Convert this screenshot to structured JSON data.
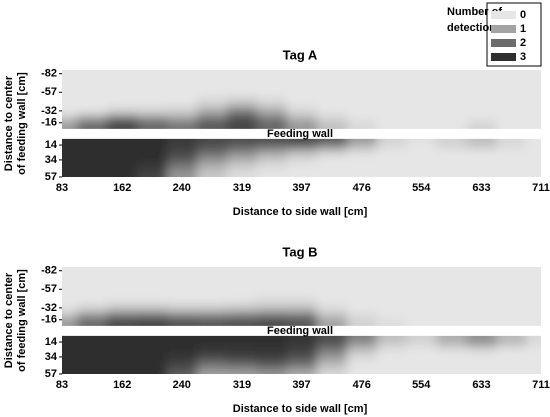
{
  "chart_data": [
    {
      "type": "heatmap",
      "title": "Tag A",
      "xlabel": "Distance to side wall [cm]",
      "ylabel": [
        "Distance to center",
        "of feeding wall [cm]"
      ],
      "annotation": "Feeding wall",
      "xlim": [
        83,
        711
      ],
      "ylim": [
        -87,
        57
      ],
      "xticks": [
        83,
        162,
        240,
        319,
        397,
        476,
        554,
        633,
        711
      ],
      "yticks": [
        -82,
        -57,
        -32,
        -16,
        14,
        34,
        57
      ],
      "x": [
        83,
        122,
        162,
        201,
        240,
        280,
        319,
        358,
        397,
        437,
        476,
        515,
        554,
        594,
        633,
        672,
        711
      ],
      "y": [
        -82,
        -70,
        -57,
        -45,
        -32,
        -24,
        -16,
        -10,
        8,
        14,
        24,
        34,
        45,
        57
      ],
      "z": [
        [
          0,
          0,
          0,
          0,
          0,
          0,
          0,
          0,
          0,
          0,
          0,
          0,
          0,
          0,
          0,
          0,
          0
        ],
        [
          0,
          0,
          0,
          0,
          0,
          0,
          0,
          0,
          0,
          0,
          0,
          0,
          0,
          0,
          0,
          0,
          0
        ],
        [
          0,
          0,
          0,
          0,
          0,
          0,
          0,
          0,
          0,
          0,
          0,
          0,
          0,
          0,
          0,
          0,
          0
        ],
        [
          0,
          0,
          0,
          0,
          0,
          0.2,
          0.4,
          0.2,
          0,
          0,
          0,
          0,
          0,
          0,
          0,
          0,
          0
        ],
        [
          0,
          0,
          0.2,
          0.2,
          0.3,
          0.8,
          1.5,
          0.8,
          0.2,
          0,
          0,
          0,
          0,
          0,
          0,
          0,
          0
        ],
        [
          0.3,
          0.8,
          1.5,
          1,
          0.8,
          1.5,
          2.3,
          1.5,
          0.6,
          0.2,
          0,
          0,
          0,
          0,
          0,
          0,
          0
        ],
        [
          1,
          2,
          2.8,
          2.2,
          1.8,
          2.5,
          2.8,
          2.2,
          1.2,
          0.5,
          0.2,
          0,
          0,
          0,
          0.2,
          0,
          0
        ],
        [
          1.2,
          2,
          2.5,
          2,
          1.8,
          2.2,
          2.5,
          2,
          1.2,
          0.6,
          0.2,
          0,
          0,
          0,
          0.3,
          0,
          0
        ],
        [
          3,
          3,
          3,
          3,
          2.8,
          2.6,
          2.5,
          2.5,
          2.6,
          2.3,
          1.2,
          0.3,
          0.1,
          0.3,
          0.6,
          0.2,
          0
        ],
        [
          3,
          3,
          3,
          3,
          2.8,
          2.5,
          2.3,
          2.2,
          2.3,
          1.8,
          0.8,
          0.2,
          0,
          0.3,
          0.5,
          0.2,
          0
        ],
        [
          3,
          3,
          3,
          3,
          2.6,
          2,
          1.5,
          1,
          0.6,
          0.3,
          0.1,
          0,
          0,
          0,
          0,
          0,
          0
        ],
        [
          3,
          3,
          3,
          3,
          2.3,
          1.3,
          0.8,
          0.4,
          0.2,
          0,
          0,
          0,
          0,
          0,
          0,
          0,
          0
        ],
        [
          3,
          3,
          3,
          2.8,
          1.6,
          0.7,
          0.3,
          0.1,
          0,
          0,
          0,
          0,
          0,
          0,
          0,
          0,
          0
        ],
        [
          3,
          3,
          3,
          2.6,
          1.2,
          0.4,
          0.1,
          0,
          0,
          0,
          0,
          0,
          0,
          0,
          0,
          0,
          0
        ]
      ],
      "colorbar": {
        "title": [
          "Number of",
          "detections"
        ],
        "levels": [
          0,
          1,
          2,
          3
        ],
        "colors": [
          "#e6e6e6",
          "#a3a3a3",
          "#6b6b6b",
          "#2e2e2e"
        ]
      }
    },
    {
      "type": "heatmap",
      "title": "Tag B",
      "xlabel": "Distance to side wall [cm]",
      "ylabel": [
        "Distance to center",
        "of feeding wall [cm]"
      ],
      "annotation": "Feeding wall",
      "xlim": [
        83,
        711
      ],
      "ylim": [
        -87,
        57
      ],
      "xticks": [
        83,
        162,
        240,
        319,
        397,
        476,
        554,
        633,
        711
      ],
      "yticks": [
        -82,
        -57,
        -32,
        -16,
        14,
        34,
        57
      ],
      "x": [
        83,
        122,
        162,
        201,
        240,
        280,
        319,
        358,
        397,
        437,
        476,
        515,
        554,
        594,
        633,
        672,
        711
      ],
      "y": [
        -82,
        -70,
        -57,
        -45,
        -32,
        -24,
        -16,
        -10,
        8,
        14,
        24,
        34,
        45,
        57
      ],
      "z": [
        [
          0,
          0,
          0,
          0,
          0,
          0,
          0,
          0,
          0,
          0,
          0,
          0,
          0,
          0,
          0,
          0,
          0
        ],
        [
          0,
          0,
          0,
          0,
          0,
          0,
          0,
          0,
          0,
          0,
          0,
          0,
          0,
          0,
          0,
          0,
          0
        ],
        [
          0,
          0,
          0,
          0,
          0,
          0,
          0,
          0,
          0,
          0,
          0,
          0,
          0,
          0,
          0,
          0,
          0
        ],
        [
          0,
          0,
          0,
          0,
          0,
          0,
          0,
          0.1,
          0.1,
          0,
          0,
          0,
          0,
          0,
          0,
          0,
          0
        ],
        [
          0,
          0.2,
          0.4,
          0.4,
          0.3,
          0.3,
          0.4,
          0.5,
          0.5,
          0.1,
          0,
          0,
          0,
          0,
          0,
          0,
          0
        ],
        [
          0.4,
          1,
          1.5,
          1.5,
          1.2,
          1.2,
          1.3,
          1.5,
          1.5,
          0.4,
          0.1,
          0,
          0,
          0,
          0,
          0,
          0
        ],
        [
          1,
          2,
          2.6,
          2.7,
          2.5,
          2.4,
          2.5,
          2.6,
          2.5,
          1,
          0.3,
          0.1,
          0,
          0,
          0,
          0,
          0
        ],
        [
          1.2,
          2,
          2.5,
          2.6,
          2.4,
          2.3,
          2.4,
          2.5,
          2.3,
          1,
          0.3,
          0.1,
          0,
          0,
          0,
          0,
          0
        ],
        [
          3,
          3,
          3,
          3,
          3,
          3,
          3,
          3,
          2.9,
          2.5,
          1.6,
          0.6,
          0.3,
          0.8,
          1.2,
          0.6,
          0.2
        ],
        [
          3,
          3,
          3,
          3,
          3,
          3,
          3,
          3,
          2.9,
          2.5,
          1.5,
          0.5,
          0.3,
          0.9,
          1.6,
          0.8,
          0.2
        ],
        [
          3,
          3,
          3,
          3,
          3,
          2.9,
          2.9,
          2.9,
          2.7,
          1.8,
          0.6,
          0.1,
          0,
          0.1,
          0.2,
          0,
          0
        ],
        [
          3,
          3,
          3,
          3,
          2.9,
          2.6,
          2.7,
          2.8,
          2.5,
          1.2,
          0.2,
          0,
          0,
          0,
          0,
          0,
          0
        ],
        [
          3,
          3,
          3,
          3,
          2.6,
          1.8,
          2,
          2.2,
          1.8,
          0.6,
          0,
          0,
          0,
          0,
          0,
          0,
          0
        ],
        [
          3,
          3,
          3,
          3,
          2.2,
          1,
          1,
          1.2,
          0.8,
          0.2,
          0,
          0,
          0,
          0,
          0,
          0,
          0
        ]
      ]
    }
  ]
}
